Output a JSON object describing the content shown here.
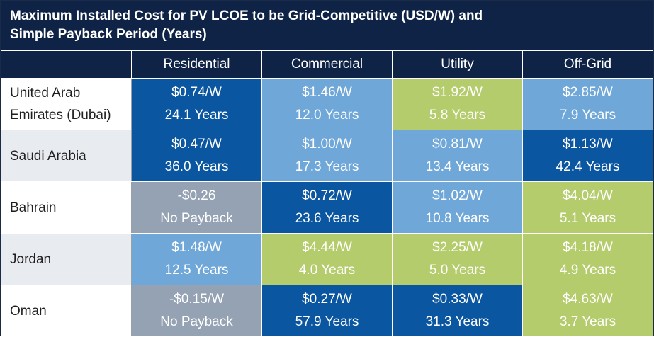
{
  "title_line1": "Maximum Installed Cost for PV LCOE to be Grid-Competitive (USD/W) and",
  "title_line2": "Simple Payback Period (Years)",
  "columns": [
    "",
    "Residential",
    "Commercial",
    "Utility",
    "Off-Grid"
  ],
  "legend_colors": {
    "dark_blue": "#0b56a0",
    "light_blue": "#6fa7d8",
    "green": "#b5cc6d",
    "gray": "#94a2b4"
  },
  "chart_data": {
    "type": "table",
    "title": "Maximum Installed Cost for PV LCOE to be Grid-Competitive (USD/W) and Simple Payback Period (Years)",
    "rows": [
      {
        "country_line1": "United Arab",
        "country_line2": "Emirates (Dubai)",
        "cells": [
          {
            "cost": "$0.74/W",
            "payback": "24.1 Years",
            "color": "dark"
          },
          {
            "cost": "$1.46/W",
            "payback": "12.0 Years",
            "color": "light"
          },
          {
            "cost": "$1.92/W",
            "payback": "5.8 Years",
            "color": "green"
          },
          {
            "cost": "$2.85/W",
            "payback": "7.9 Years",
            "color": "light"
          }
        ]
      },
      {
        "country_line1": "Saudi Arabia",
        "country_line2": "",
        "cells": [
          {
            "cost": "$0.47/W",
            "payback": "36.0 Years",
            "color": "dark"
          },
          {
            "cost": "$1.00/W",
            "payback": "17.3 Years",
            "color": "light"
          },
          {
            "cost": "$0.81/W",
            "payback": "13.4 Years",
            "color": "light"
          },
          {
            "cost": "$1.13/W",
            "payback": "42.4 Years",
            "color": "dark"
          }
        ]
      },
      {
        "country_line1": "Bahrain",
        "country_line2": "",
        "cells": [
          {
            "cost": "-$0.26",
            "payback": "No Payback",
            "color": "gray"
          },
          {
            "cost": "$0.72/W",
            "payback": "23.6 Years",
            "color": "dark"
          },
          {
            "cost": "$1.02/W",
            "payback": "10.8 Years",
            "color": "light"
          },
          {
            "cost": "$4.04/W",
            "payback": "5.1 Years",
            "color": "green"
          }
        ]
      },
      {
        "country_line1": "Jordan",
        "country_line2": "",
        "cells": [
          {
            "cost": "$1.48/W",
            "payback": "12.5 Years",
            "color": "light"
          },
          {
            "cost": "$4.44/W",
            "payback": "4.0 Years",
            "color": "green"
          },
          {
            "cost": "$2.25/W",
            "payback": "5.0 Years",
            "color": "green"
          },
          {
            "cost": "$4.18/W",
            "payback": "4.9 Years",
            "color": "green"
          }
        ]
      },
      {
        "country_line1": "Oman",
        "country_line2": "",
        "cells": [
          {
            "cost": "-$0.15/W",
            "payback": "No Payback",
            "color": "gray"
          },
          {
            "cost": "$0.27/W",
            "payback": "57.9 Years",
            "color": "dark"
          },
          {
            "cost": "$0.33/W",
            "payback": "31.3 Years",
            "color": "dark"
          },
          {
            "cost": "$4.63/W",
            "payback": "3.7 Years",
            "color": "green"
          }
        ]
      }
    ]
  }
}
